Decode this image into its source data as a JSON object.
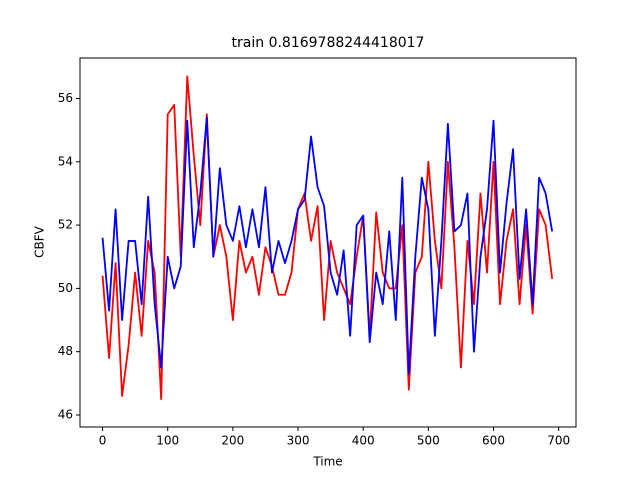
{
  "chart_data": {
    "type": "line",
    "title": "train 0.8169788244418017",
    "x_label": "Time",
    "y_label": "CBFV",
    "x": [
      0,
      10,
      20,
      30,
      40,
      50,
      60,
      70,
      80,
      90,
      100,
      110,
      120,
      130,
      140,
      150,
      160,
      170,
      180,
      190,
      200,
      210,
      220,
      230,
      240,
      250,
      260,
      270,
      280,
      290,
      300,
      310,
      320,
      330,
      340,
      350,
      360,
      370,
      380,
      390,
      400,
      410,
      420,
      430,
      440,
      450,
      460,
      470,
      480,
      490,
      500,
      510,
      520,
      530,
      540,
      550,
      560,
      570,
      580,
      590,
      600,
      610,
      620,
      630,
      640,
      650,
      660,
      670,
      680,
      690
    ],
    "series": [
      {
        "color": "red",
        "values": [
          50.4,
          47.8,
          50.8,
          46.6,
          48.2,
          50.5,
          48.5,
          51.5,
          50.5,
          46.5,
          55.5,
          55.8,
          51,
          56.7,
          54.2,
          52,
          55.5,
          51,
          52,
          51,
          49,
          51.5,
          50.5,
          51,
          49.8,
          51.3,
          50.7,
          49.8,
          49.8,
          50.5,
          52.5,
          53,
          51.5,
          52.6,
          49,
          51.5,
          50.5,
          50,
          49.5,
          51,
          52.3,
          48.5,
          52.4,
          50.5,
          50,
          50,
          52,
          46.8,
          50.5,
          51,
          54,
          51.5,
          50,
          54,
          51.3,
          47.5,
          51.5,
          49.5,
          53,
          50.5,
          54,
          49.5,
          51.5,
          52.5,
          49.5,
          52,
          49.2,
          52.5,
          52,
          50.3
        ]
      },
      {
        "color": "blue",
        "values": [
          51.6,
          49.3,
          52.5,
          49,
          51.5,
          51.5,
          49.5,
          52.9,
          49.5,
          47.5,
          51,
          50,
          50.7,
          55.3,
          51.3,
          53,
          55.4,
          51,
          53.8,
          52,
          51.5,
          52.6,
          51.3,
          52.5,
          51.3,
          53.2,
          50.5,
          51.5,
          50.8,
          51.5,
          52.5,
          52.8,
          54.8,
          53.2,
          52.6,
          50.5,
          49.8,
          51.2,
          48.5,
          52,
          52.3,
          48.3,
          50.5,
          49.5,
          51.8,
          49,
          53.5,
          47.3,
          51,
          53.5,
          52.5,
          48.5,
          51.5,
          55.2,
          51.8,
          52,
          53,
          48,
          51,
          52.5,
          55.3,
          50.5,
          52.7,
          54.4,
          50.3,
          52.5,
          49.5,
          53.5,
          53,
          51.8
        ]
      }
    ],
    "xlim": [
      -34.6,
      726.6
    ],
    "ylim": [
      45.62,
      57.28
    ],
    "xticks": [
      0,
      100,
      200,
      300,
      400,
      500,
      600,
      700
    ],
    "yticks": [
      46,
      48,
      50,
      52,
      54,
      56
    ]
  }
}
